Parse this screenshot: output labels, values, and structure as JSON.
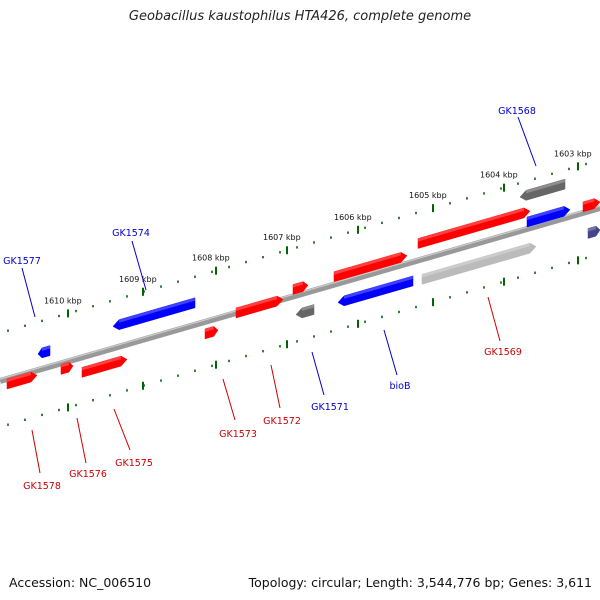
{
  "title": "Geobacillus kaustophilus HTA426, complete genome",
  "footer": {
    "accession": "Accession: NC_006510",
    "summary": "Topology: circular; Length: 3,544,776 bp; Genes: 3,611"
  },
  "colors": {
    "forward_gene": "#ff0000",
    "reverse_gene": "#0000ff",
    "rna_gene": "#666666",
    "pseudo_gene": "#bbbbbb",
    "backbone": "#888888",
    "tick_dots": "#006400",
    "label_red": "#cc0000",
    "label_blue": "#0000cc"
  },
  "ticks": [
    {
      "kbp": 1603,
      "label": "1603 kbp"
    },
    {
      "kbp": 1604,
      "label": "1604 kbp"
    },
    {
      "kbp": 1605,
      "label": "1605 kbp"
    },
    {
      "kbp": 1606,
      "label": "1606 kbp"
    },
    {
      "kbp": 1607,
      "label": "1607 kbp"
    },
    {
      "kbp": 1608,
      "label": "1608 kbp"
    },
    {
      "kbp": 1609,
      "label": "1609 kbp"
    },
    {
      "kbp": 1610,
      "label": "1610 kbp"
    }
  ],
  "genes": [
    {
      "name": "GK1568",
      "type": "rna",
      "strand": "reverse"
    },
    {
      "name": "GK1569",
      "type": "pseudo",
      "strand": "forward"
    },
    {
      "name": "bioB",
      "type": "coding",
      "strand": "reverse"
    },
    {
      "name": "GK1571",
      "type": "rna",
      "strand": "reverse"
    },
    {
      "name": "GK1572",
      "type": "coding",
      "strand": "forward"
    },
    {
      "name": "GK1573",
      "type": "coding",
      "strand": "forward"
    },
    {
      "name": "GK1574",
      "type": "coding",
      "strand": "reverse"
    },
    {
      "name": "GK1575",
      "type": "coding",
      "strand": "forward"
    },
    {
      "name": "GK1576",
      "type": "coding",
      "strand": "forward"
    },
    {
      "name": "GK1577",
      "type": "coding",
      "strand": "reverse"
    },
    {
      "name": "GK1578",
      "type": "coding",
      "strand": "forward"
    }
  ]
}
